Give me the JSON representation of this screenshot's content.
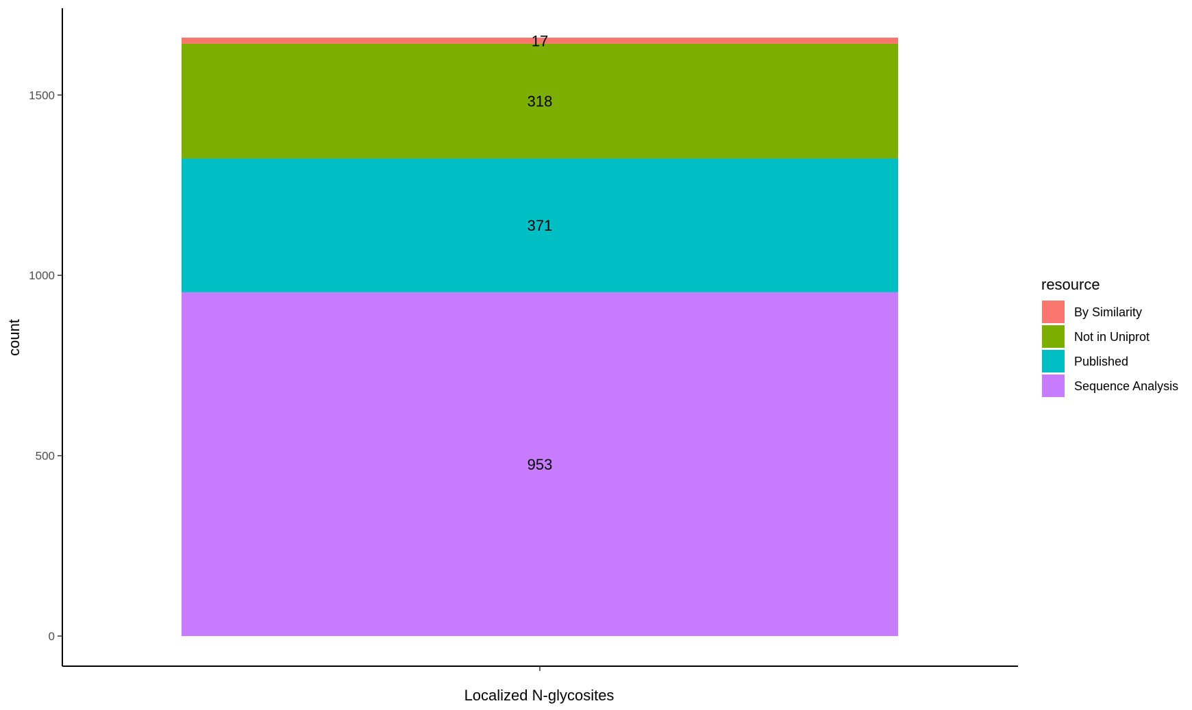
{
  "chart_data": {
    "type": "bar",
    "stacked": true,
    "categories": [
      "Localized N-glycosites"
    ],
    "series": [
      {
        "name": "Sequence Analysis",
        "values": [
          953
        ],
        "color": "#C77CFF"
      },
      {
        "name": "Published",
        "values": [
          371
        ],
        "color": "#00BFC4"
      },
      {
        "name": "Not in Uniprot",
        "values": [
          318
        ],
        "color": "#7CAE00"
      },
      {
        "name": "By Similarity",
        "values": [
          17
        ],
        "color": "#F8766D"
      }
    ],
    "xlabel": "Localized N-glycosites",
    "ylabel": "count",
    "ylim": [
      0,
      1659
    ],
    "yticks": [
      0,
      500,
      1000,
      1500
    ],
    "grid": false,
    "legend": {
      "title": "resource",
      "position": "right",
      "entries": [
        "By Similarity",
        "Not in Uniprot",
        "Published",
        "Sequence Analysis"
      ]
    }
  }
}
